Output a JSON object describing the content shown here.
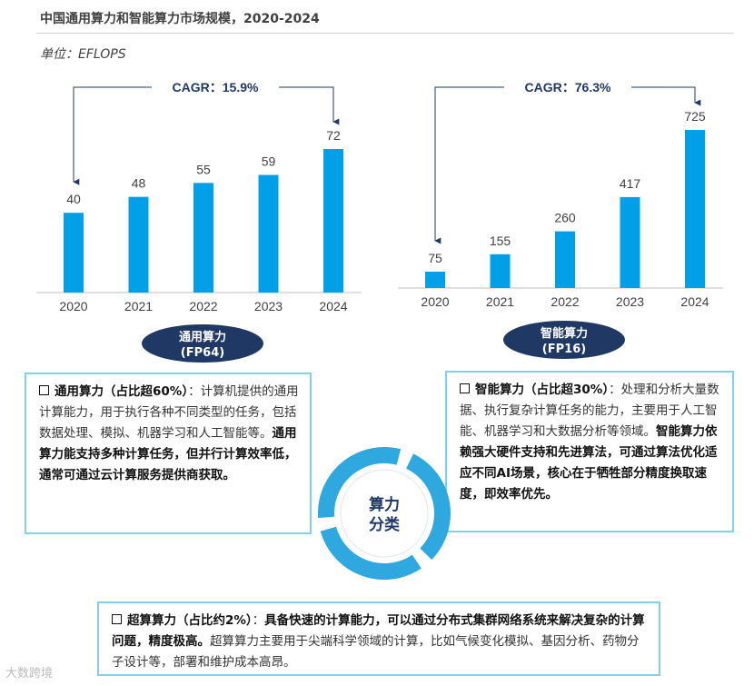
{
  "title": "中国通用算力和智能算力市场规模，2020-2024",
  "unit": "单位：EFLOPS",
  "chart_data": [
    {
      "type": "bar",
      "categories": [
        "2020",
        "2021",
        "2022",
        "2023",
        "2024"
      ],
      "values": [
        40,
        48,
        55,
        59,
        72
      ],
      "annotation": "CAGR：15.9%",
      "label": "通用算力",
      "sublabel": "(FP64)",
      "color": "#00a0e9"
    },
    {
      "type": "bar",
      "categories": [
        "2020",
        "2021",
        "2022",
        "2023",
        "2024"
      ],
      "values": [
        75,
        155,
        260,
        417,
        725
      ],
      "annotation": "CAGR：76.3%",
      "label": "智能算力",
      "sublabel": "(FP16)",
      "color": "#00a0e9"
    }
  ],
  "center_label": [
    "算力",
    "分类"
  ],
  "boxes": {
    "general": {
      "head": "通用算力（占比超60%）",
      "sep": "：",
      "normal": "计算机提供的通用计算能力，用于执行各种不同类型的任务，包括数据处理、模拟、机器学习和人工智能等。",
      "bold": "通用算力能支持多种计算任务，但并行计算效率低，通常可通过云计算服务提供商获取。"
    },
    "intelligent": {
      "head": "智能算力（占比超30%）",
      "sep": "：",
      "normal": "处理和分析大量数据、执行复杂计算任务的能力，主要用于人工智能、机器学习和大数据分析等领域。",
      "bold": "智能算力依赖强大硬件支持和先进算法，可通过算法优化适应不同AI场景，核心在于牺牲部分精度换取速度，即效率优先。"
    },
    "super": {
      "head": "超算算力（占比约2%）",
      "sep": "：",
      "bold": "具备快速的计算能力，可以通过分布式集群网络系统来解决复杂的计算问题，精度极高。",
      "normal": "超算算力主要用于尖端科学领域的计算，比如气候变化模拟、基因分析、药物分子设计等，部署和维护成本高昂。"
    }
  },
  "watermark": "大数跨境"
}
